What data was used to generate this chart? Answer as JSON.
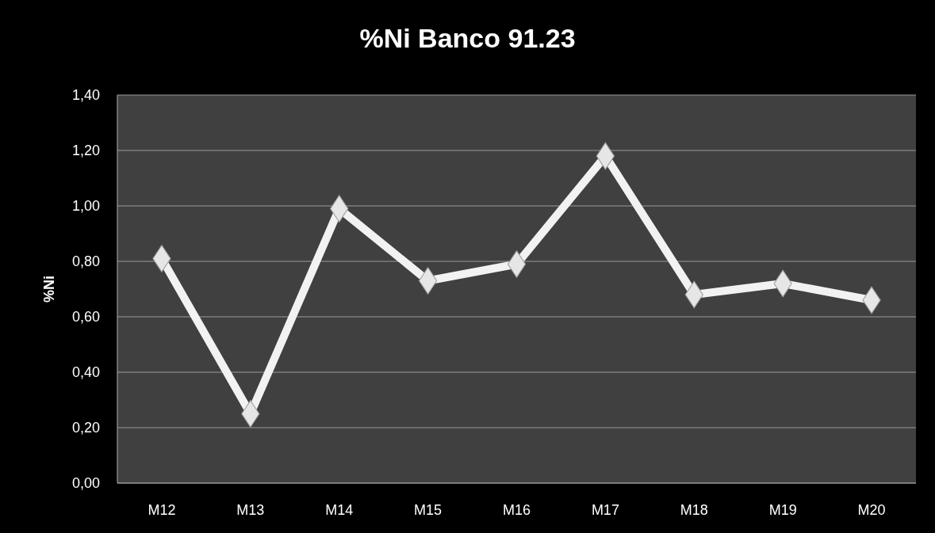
{
  "chart_data": {
    "type": "line",
    "title": "%Ni Banco 91.23",
    "ylabel": "%Ni",
    "categories": [
      "M12",
      "M13",
      "M14",
      "M15",
      "M16",
      "M17",
      "M18",
      "M19",
      "M20"
    ],
    "series": [
      {
        "color": "#f2f2f2",
        "values": [
          0.81,
          0.25,
          0.99,
          0.73,
          0.79,
          1.18,
          0.68,
          0.72,
          0.66
        ]
      }
    ],
    "ylim": [
      0,
      1.4
    ],
    "yticks": [
      {
        "value": 0,
        "label": "0,00"
      },
      {
        "value": 0.2,
        "label": "0,20"
      },
      {
        "value": 0.4,
        "label": "0,40"
      },
      {
        "value": 0.6,
        "label": "0,60"
      },
      {
        "value": 0.8,
        "label": "0,80"
      },
      {
        "value": 1,
        "label": "1,00"
      },
      {
        "value": 1.2,
        "label": "1,20"
      },
      {
        "value": 1.4,
        "label": "1,40"
      }
    ],
    "grid": "y",
    "marker": "diamond",
    "line_style": "solid"
  }
}
